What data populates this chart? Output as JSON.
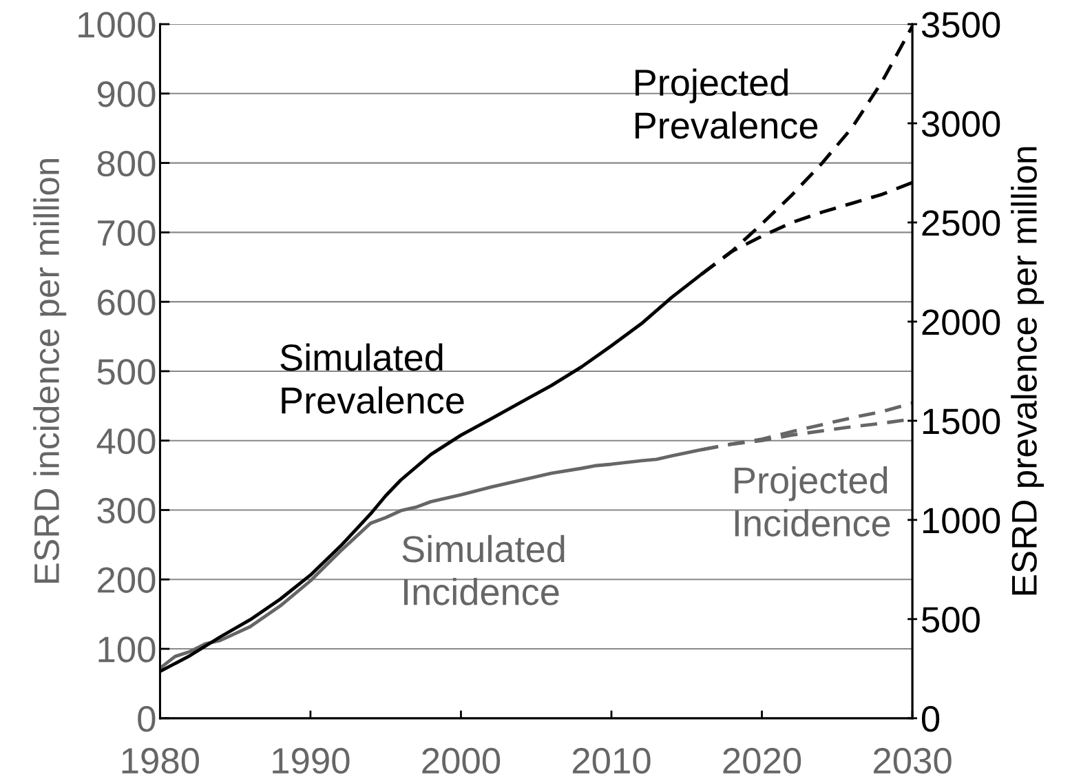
{
  "chart_data": {
    "type": "line",
    "ylabel": "ESRD incidence per million",
    "y2label": "ESRD prevalence per million",
    "xlim": [
      1980,
      2030
    ],
    "xticks": [
      1980,
      1990,
      2000,
      2010,
      2020,
      2030
    ],
    "ylim": [
      0,
      1000
    ],
    "yticks": [
      0,
      100,
      200,
      300,
      400,
      500,
      600,
      700,
      800,
      900,
      1000
    ],
    "y2lim": [
      0,
      3500
    ],
    "y2ticks": [
      0,
      500,
      1000,
      1500,
      2000,
      2500,
      3000,
      3500
    ],
    "grid": "y",
    "legend": false,
    "series": [
      {
        "name": "Simulated Prevalence",
        "color": "#000000",
        "axis": "y2",
        "line_style": "solid",
        "x": [
          1980,
          1982,
          1984,
          1986,
          1988,
          1990,
          1992,
          1994,
          1995,
          1996,
          1998,
          2000,
          2002,
          2004,
          2006,
          2008,
          2010,
          2012,
          2014,
          2016
        ],
        "values": [
          236,
          316,
          410,
          497,
          601,
          722,
          868,
          1031,
          1122,
          1201,
          1330,
          1427,
          1510,
          1594,
          1677,
          1771,
          1878,
          1990,
          2122,
          2240
        ]
      },
      {
        "name": "Projected Prevalence",
        "color": "#000000",
        "axis": "y2",
        "line_style": "dashed",
        "x": [
          2016,
          2018,
          2020,
          2022,
          2024,
          2026,
          2028,
          2030
        ],
        "values": [
          2240,
          2354,
          2493,
          2639,
          2799,
          2979,
          3212,
          3490
        ]
      },
      {
        "color": "#000000",
        "axis": "y2",
        "line_style": "dashed",
        "x": [
          2016,
          2018,
          2020,
          2022,
          2024,
          2026,
          2028,
          2030
        ],
        "values": [
          2240,
          2354,
          2431,
          2500,
          2552,
          2597,
          2642,
          2701
        ]
      },
      {
        "name": "Simulated Incidence",
        "color": "#666666",
        "line_style": "solid",
        "x": [
          1980,
          1981,
          1982,
          1983,
          1984,
          1986,
          1988,
          1990,
          1992,
          1994,
          1995,
          1996,
          1997,
          1998,
          2000,
          2002,
          2004,
          2006,
          2008,
          2009,
          2010,
          2012,
          2013,
          2014,
          2016
        ],
        "values": [
          72,
          89,
          96,
          107,
          112,
          132,
          162,
          198,
          241,
          281,
          289,
          299,
          304,
          312,
          322,
          333,
          343,
          353,
          360,
          364,
          366,
          371,
          373,
          378,
          387
        ]
      },
      {
        "name": "Projected Incidence",
        "color": "#666666",
        "line_style": "dashed",
        "x": [
          2016,
          2018,
          2020,
          2022,
          2024,
          2026,
          2028,
          2030
        ],
        "values": [
          387,
          395,
          402,
          413,
          423,
          433,
          442,
          454
        ]
      },
      {
        "color": "#666666",
        "line_style": "dashed",
        "x": [
          2016,
          2018,
          2020,
          2022,
          2024,
          2026,
          2028,
          2030
        ],
        "values": [
          387,
          395,
          400,
          408,
          414,
          420,
          425,
          431
        ]
      }
    ]
  }
}
